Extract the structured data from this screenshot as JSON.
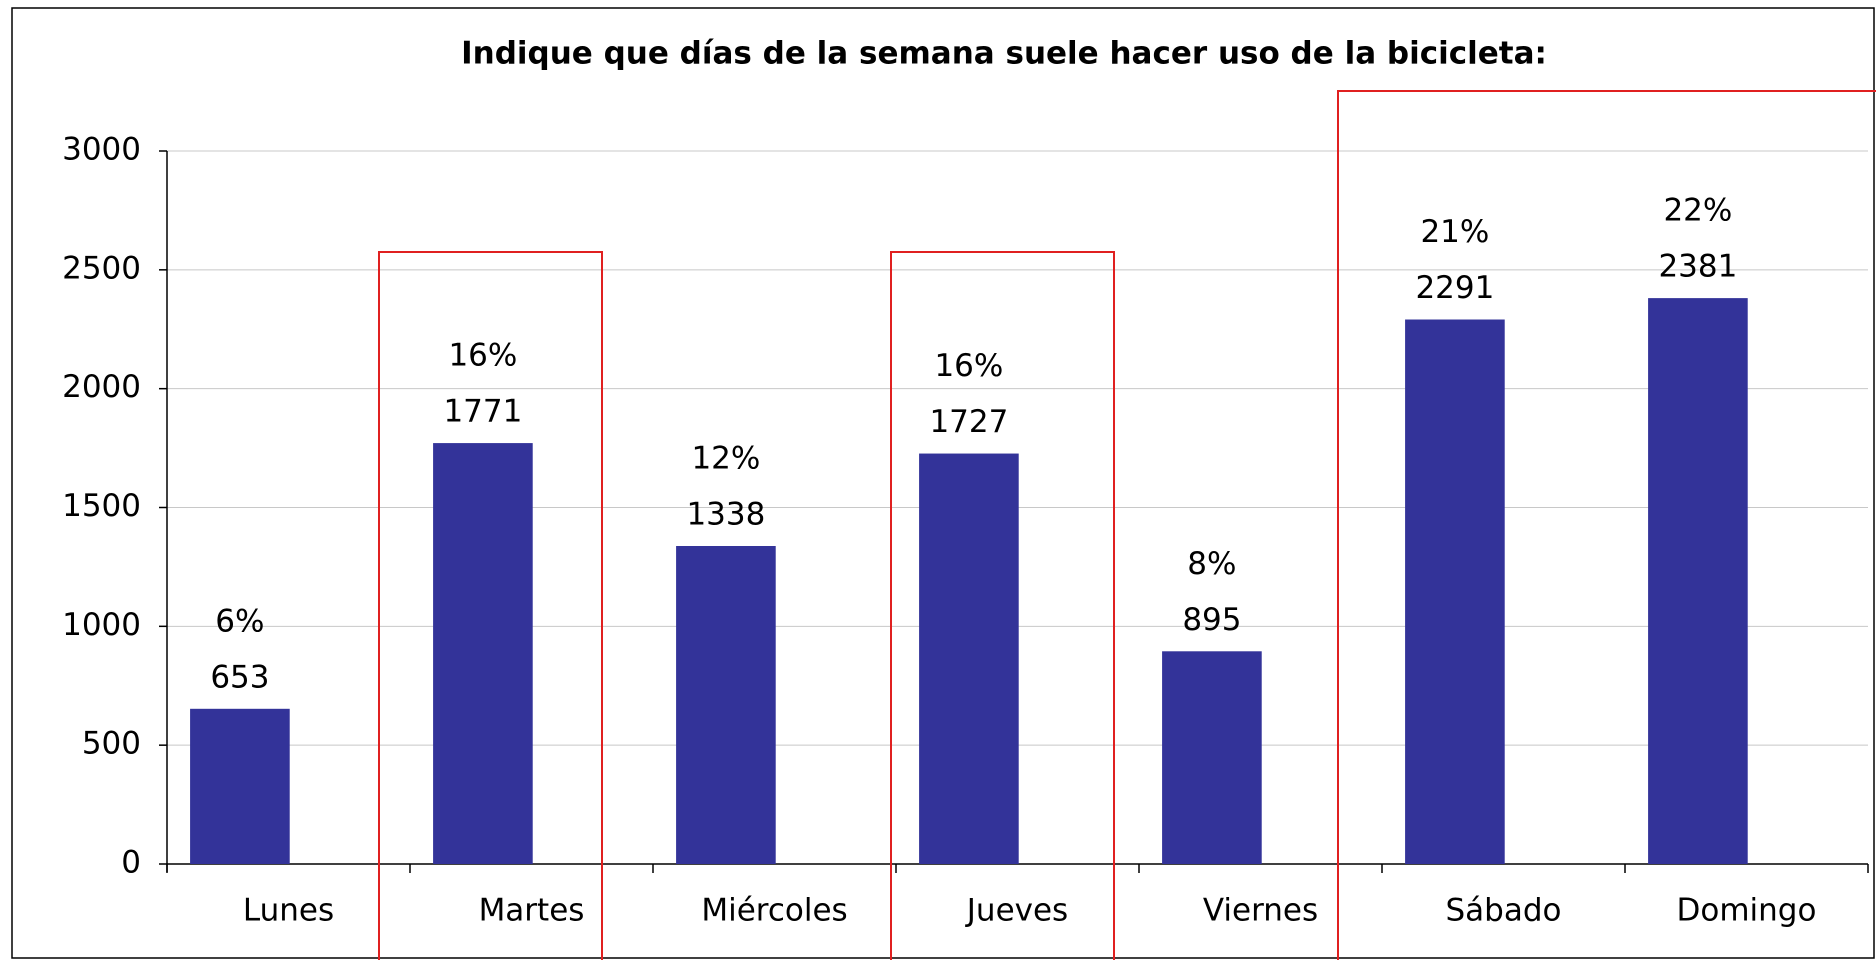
{
  "chart_data": {
    "type": "bar",
    "title": "Indique que días de la semana suele hacer uso de la bicicleta:",
    "categories": [
      "Lunes",
      "Martes",
      "Miércoles",
      "Jueves",
      "Viernes",
      "Sábado",
      "Domingo"
    ],
    "values": [
      653,
      1771,
      1338,
      1727,
      895,
      2291,
      2381
    ],
    "percent_labels": [
      "6%",
      "16%",
      "12%",
      "16%",
      "8%",
      "21%",
      "22%"
    ],
    "color": "#333399",
    "ylim": [
      0,
      3000
    ],
    "yticks": [
      0,
      500,
      1000,
      1500,
      2000,
      2500,
      3000
    ],
    "grid": true
  }
}
